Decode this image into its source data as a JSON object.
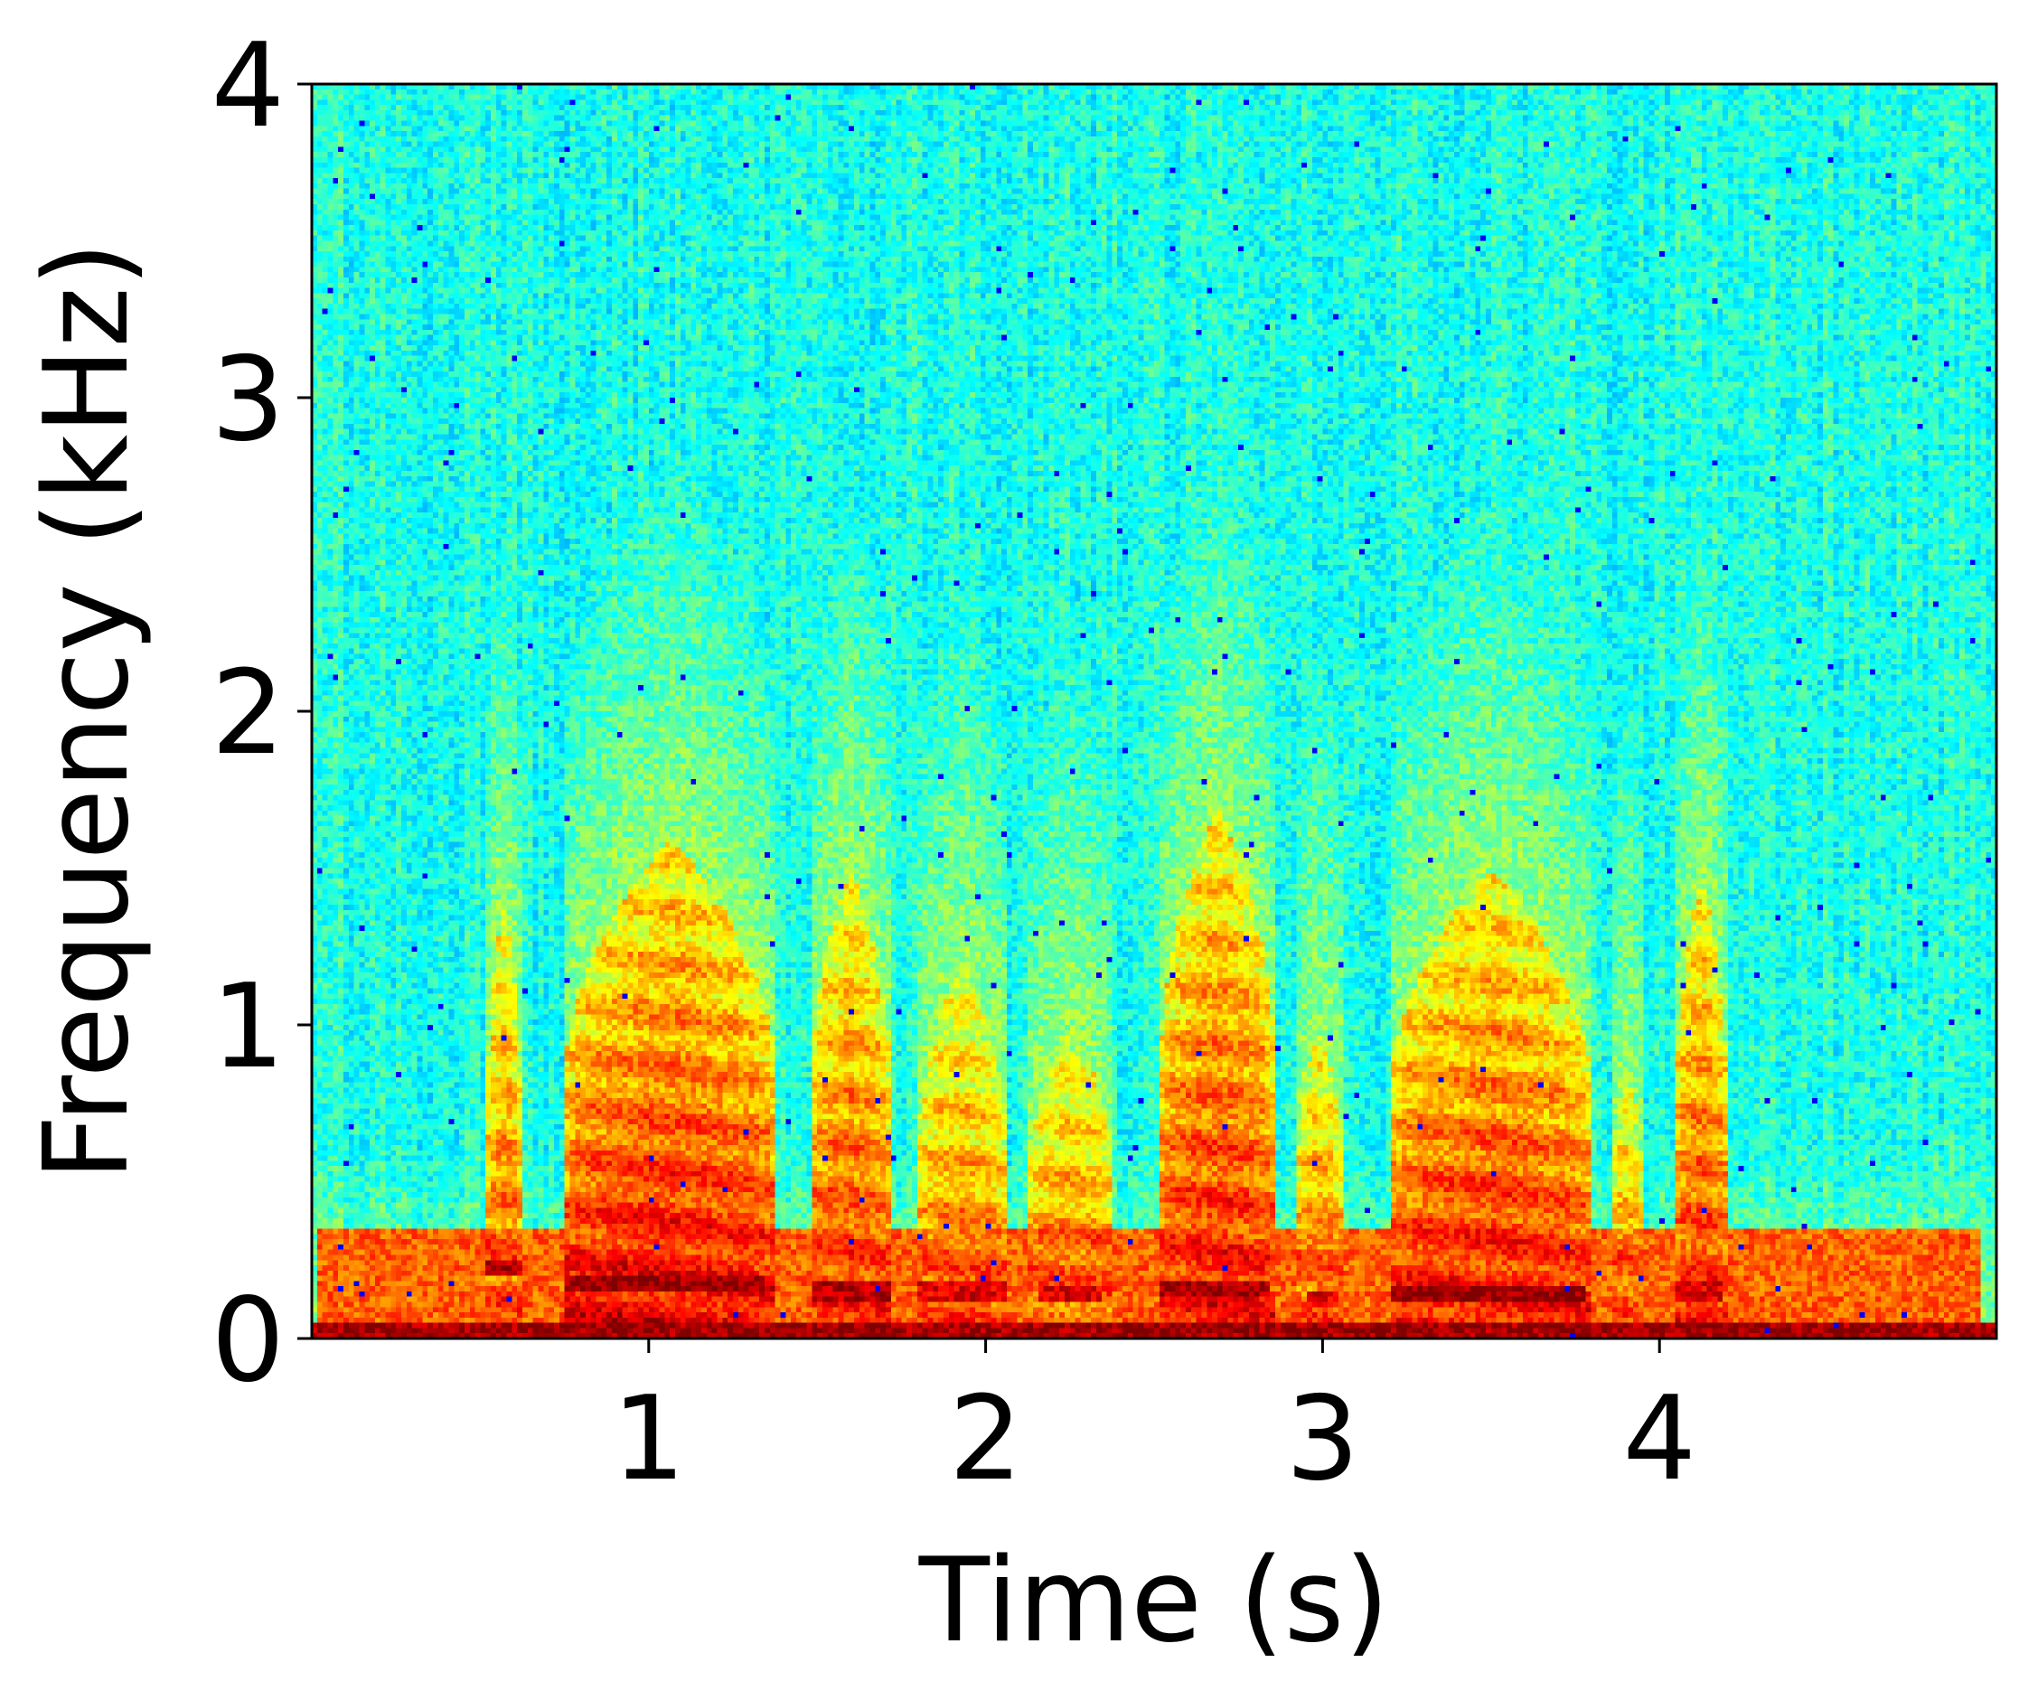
{
  "chart_data": {
    "type": "heatmap",
    "title": "",
    "xlabel": "Time (s)",
    "ylabel": "Frequency (kHz)",
    "xlim": [
      0,
      5
    ],
    "ylim": [
      0,
      4
    ],
    "x_ticks": [
      1,
      2,
      3,
      4
    ],
    "x_tick_labels": [
      "1",
      "2",
      "3",
      "4"
    ],
    "y_ticks": [
      0,
      1,
      2,
      3,
      4
    ],
    "y_tick_labels": [
      "0",
      "1",
      "2",
      "3",
      "4"
    ],
    "colormap": "jet",
    "grid": false,
    "legend": "none",
    "background_low_band": {
      "freq_max": 0.35,
      "level": 0.78
    },
    "dc_band": {
      "freq_max": 0.05,
      "level": 0.97
    },
    "background_level": 0.4,
    "fundamental_tracks": [
      {
        "t_start": 0.52,
        "t_end": 0.62,
        "freq": 0.22,
        "level": 0.95
      },
      {
        "t_start": 0.75,
        "t_end": 1.35,
        "freq": 0.18,
        "level": 0.98
      },
      {
        "t_start": 1.48,
        "t_end": 1.72,
        "freq": 0.15,
        "level": 0.95
      },
      {
        "t_start": 1.8,
        "t_end": 2.06,
        "freq": 0.15,
        "level": 0.9
      },
      {
        "t_start": 2.15,
        "t_end": 2.35,
        "freq": 0.14,
        "level": 0.9
      },
      {
        "t_start": 2.52,
        "t_end": 2.85,
        "freq": 0.16,
        "level": 0.97
      },
      {
        "t_start": 2.95,
        "t_end": 3.05,
        "freq": 0.12,
        "level": 0.9
      },
      {
        "t_start": 3.2,
        "t_end": 3.78,
        "freq": 0.14,
        "level": 0.98
      },
      {
        "t_start": 4.05,
        "t_end": 4.18,
        "freq": 0.15,
        "level": 0.9
      }
    ],
    "voiced_segments": [
      {
        "t_start": 0.52,
        "t_end": 0.62,
        "freq_max": 1.4,
        "strength": 0.82
      },
      {
        "t_start": 0.75,
        "t_end": 1.38,
        "freq_max": 1.6,
        "strength": 0.9
      },
      {
        "t_start": 1.48,
        "t_end": 1.72,
        "freq_max": 1.5,
        "strength": 0.85
      },
      {
        "t_start": 1.8,
        "t_end": 2.06,
        "freq_max": 1.2,
        "strength": 0.8
      },
      {
        "t_start": 2.13,
        "t_end": 2.38,
        "freq_max": 1.0,
        "strength": 0.8
      },
      {
        "t_start": 2.52,
        "t_end": 2.86,
        "freq_max": 1.7,
        "strength": 0.88
      },
      {
        "t_start": 2.92,
        "t_end": 3.06,
        "freq_max": 1.0,
        "strength": 0.8
      },
      {
        "t_start": 3.2,
        "t_end": 3.8,
        "freq_max": 1.5,
        "strength": 0.88
      },
      {
        "t_start": 3.86,
        "t_end": 3.95,
        "freq_max": 0.9,
        "strength": 0.78
      },
      {
        "t_start": 4.05,
        "t_end": 4.2,
        "freq_max": 1.5,
        "strength": 0.85
      }
    ]
  }
}
